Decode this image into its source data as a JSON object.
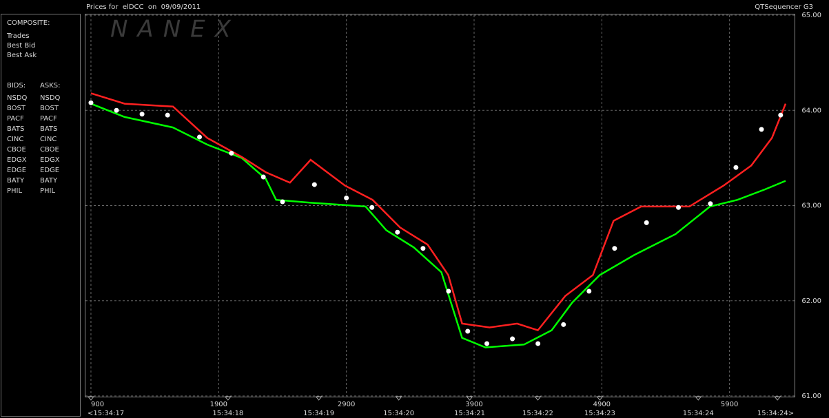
{
  "chart_data": {
    "type": "line",
    "title": "Prices for  elDCC  on  09/09/2011",
    "brand": "QTSequencer G3",
    "watermark": "NANEX",
    "legend": {
      "composite_heading": "COMPOSITE:",
      "bids_heading": "BIDS:",
      "asks_heading": "ASKS:",
      "bids": [
        {
          "name": "NSDQ",
          "color": "#5b8ff9"
        },
        {
          "name": "BOST",
          "color": "#8fd14f"
        },
        {
          "name": "PACF",
          "color": "#40e0d0"
        },
        {
          "name": "BATS",
          "color": "#87cefa"
        },
        {
          "name": "CINC",
          "color": "#5f9ea0"
        },
        {
          "name": "CBOE",
          "color": "#2e62c0"
        },
        {
          "name": "EDGX",
          "color": "#2e8b57"
        },
        {
          "name": "EDGE",
          "color": "#3cb371"
        },
        {
          "name": "BATY",
          "color": "#4169e1"
        },
        {
          "name": "PHIL",
          "color": "#8fae3a"
        }
      ],
      "asks": [
        {
          "name": "NSDQ",
          "color": "#ff8c00"
        },
        {
          "name": "BOST",
          "color": "#e9967a"
        },
        {
          "name": "PACF",
          "color": "#ffff66"
        },
        {
          "name": "BATS",
          "color": "#f4d03f"
        },
        {
          "name": "CINC",
          "color": "#d2b48c"
        },
        {
          "name": "CBOE",
          "color": "#cd853f"
        },
        {
          "name": "EDGX",
          "color": "#ff6347"
        },
        {
          "name": "EDGE",
          "color": "#fa8072"
        },
        {
          "name": "BATY",
          "color": "#ff4500"
        },
        {
          "name": "PHIL",
          "color": "#db7093"
        }
      ]
    },
    "series": [
      {
        "name": "Trades",
        "color": "#ffffff",
        "mode": "markers",
        "x": [
          900,
          1100,
          1300,
          1500,
          1750,
          2000,
          2250,
          2400,
          2650,
          2900,
          3100,
          3300,
          3500,
          3700,
          3850,
          4000,
          4200,
          4400,
          4600,
          4800,
          5000,
          5250,
          5500,
          5750,
          5950,
          6150,
          6300
        ],
        "values": [
          64.08,
          64.0,
          63.96,
          63.95,
          63.72,
          63.55,
          63.3,
          63.04,
          63.22,
          63.08,
          62.98,
          62.72,
          62.55,
          62.1,
          61.68,
          61.55,
          61.6,
          61.55,
          61.75,
          62.1,
          62.55,
          62.82,
          62.98,
          63.02,
          63.4,
          63.8,
          63.95
        ]
      },
      {
        "name": "Best Bid",
        "color": "#00ff00",
        "mode": "line",
        "x": [
          900,
          1164,
          1542,
          1811,
          2081,
          2269,
          2350,
          2620,
          3051,
          3213,
          3428,
          3644,
          3806,
          3989,
          4291,
          4507,
          4668,
          4884,
          5153,
          5477,
          5747,
          5962,
          6178,
          6339
        ],
        "values": [
          64.07,
          63.93,
          63.82,
          63.64,
          63.5,
          63.28,
          63.06,
          63.03,
          62.99,
          62.74,
          62.56,
          62.3,
          61.61,
          61.51,
          61.54,
          61.69,
          61.98,
          62.27,
          62.48,
          62.7,
          62.99,
          63.06,
          63.17,
          63.26
        ]
      },
      {
        "name": "Best Ask",
        "color": "#ff2020",
        "mode": "line",
        "x": [
          900,
          1164,
          1542,
          1811,
          2081,
          2269,
          2458,
          2620,
          2889,
          3105,
          3320,
          3536,
          3698,
          3806,
          4021,
          4237,
          4399,
          4614,
          4830,
          4992,
          5208,
          5585,
          5854,
          6070,
          6232,
          6339
        ],
        "values": [
          64.18,
          64.07,
          64.04,
          63.71,
          63.51,
          63.35,
          63.24,
          63.48,
          63.21,
          63.06,
          62.77,
          62.59,
          62.27,
          61.76,
          61.72,
          61.76,
          61.69,
          62.05,
          62.27,
          62.84,
          62.99,
          62.99,
          63.21,
          63.42,
          63.71,
          64.07
        ]
      }
    ],
    "xlim": [
      857,
      6409
    ],
    "xticks": [
      900,
      1900,
      2900,
      3900,
      4900,
      5900
    ],
    "time_ticks": [
      {
        "value": 900,
        "label": "<15:34:17"
      },
      {
        "value": 1973,
        "label": "15:34:18"
      },
      {
        "value": 2684,
        "label": "15:34:19"
      },
      {
        "value": 3310,
        "label": "15:34:20"
      },
      {
        "value": 3865,
        "label": "15:34:21"
      },
      {
        "value": 4399,
        "label": "15:34:22"
      },
      {
        "value": 4884,
        "label": "15:34:23"
      },
      {
        "value": 5655,
        "label": "15:34:24"
      },
      {
        "value": 6275,
        "label": "15:34:24>"
      }
    ],
    "ylim": [
      61,
      65
    ],
    "yticks": [
      {
        "value": 61,
        "label": "61.00"
      },
      {
        "value": 62,
        "label": "62.00"
      },
      {
        "value": 63,
        "label": "63.00"
      },
      {
        "value": 64,
        "label": "64.00"
      },
      {
        "value": 65,
        "label": "65.00"
      }
    ],
    "grid": true
  }
}
